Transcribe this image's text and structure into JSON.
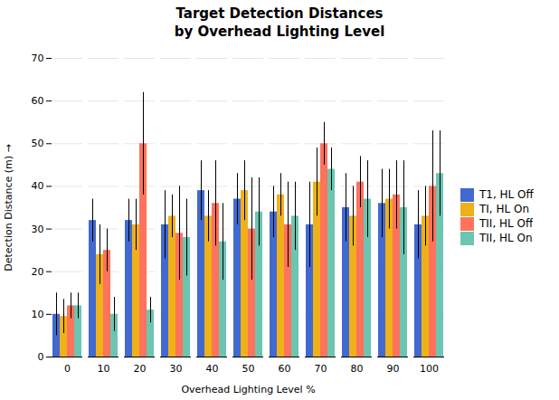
{
  "chart_data": {
    "type": "bar",
    "title": "Target Detection Distances\nby Overhead Lighting Level",
    "xlabel": "Overhead Lighting Level %",
    "ylabel": "Detection Distance (m)",
    "categories": [
      0,
      10,
      20,
      30,
      40,
      50,
      60,
      70,
      80,
      90,
      100
    ],
    "series": [
      {
        "name": "T1, HL Off",
        "values": [
          10,
          32,
          32,
          31,
          39,
          37,
          34,
          31,
          35,
          36,
          31
        ],
        "errors": [
          5,
          5,
          5,
          8,
          7,
          6,
          6,
          10,
          8,
          8,
          8
        ]
      },
      {
        "name": "TI, HL On",
        "values": [
          9.5,
          24,
          31,
          33,
          33,
          39,
          38,
          41,
          33,
          37,
          33
        ],
        "errors": [
          4,
          7,
          6,
          5,
          6,
          7,
          5,
          8,
          7,
          7,
          7
        ]
      },
      {
        "name": "TII, HL Off",
        "values": [
          12,
          25,
          50,
          29,
          36,
          30,
          31,
          50,
          41,
          38,
          40
        ],
        "errors": [
          3,
          5,
          12,
          11,
          10,
          12,
          10,
          5,
          6,
          8,
          13
        ]
      },
      {
        "name": "TII, HL On",
        "values": [
          12,
          10,
          11,
          28,
          27,
          34,
          33,
          44,
          37,
          35,
          43
        ],
        "errors": [
          3,
          4,
          3,
          9,
          9,
          8,
          8,
          5,
          9,
          11,
          10
        ]
      }
    ],
    "ylim": [
      0,
      70
    ],
    "yticks": [
      0,
      10,
      20,
      30,
      40,
      50,
      60,
      70
    ],
    "grid": true,
    "legend": "right"
  }
}
